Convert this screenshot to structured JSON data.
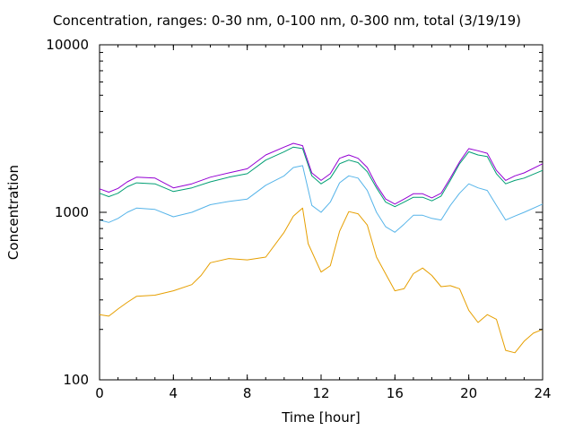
{
  "chart_data": {
    "type": "line",
    "title": "Concentration, ranges: 0-30 nm, 0-100 nm, 0-300 nm, total (3/19/19)",
    "xlabel": "Time [hour]",
    "ylabel": "Concentration",
    "xlim": [
      0,
      24
    ],
    "ylim": [
      100,
      10000
    ],
    "yscale": "log",
    "x_ticks": [
      "0",
      "4",
      "8",
      "12",
      "16",
      "20",
      "24"
    ],
    "y_ticks": [
      "100",
      "1000",
      "10000"
    ],
    "grid": false,
    "legend": "none",
    "series": [
      {
        "color": "#e69f00",
        "x": [
          0,
          0.5,
          1,
          1.5,
          2,
          3,
          4,
          5,
          5.5,
          6,
          7,
          8,
          9,
          10,
          10.5,
          11,
          11.3,
          12,
          12.5,
          13,
          13.5,
          14,
          14.5,
          15,
          16,
          16.5,
          17,
          17.5,
          18,
          18.5,
          19,
          19.5,
          20,
          20.5,
          21,
          21.5,
          22,
          22.5,
          23,
          23.5,
          24
        ],
        "y": [
          245,
          240,
          265,
          290,
          315,
          320,
          340,
          370,
          420,
          500,
          530,
          520,
          540,
          760,
          950,
          1060,
          650,
          440,
          480,
          770,
          1010,
          980,
          840,
          540,
          340,
          350,
          430,
          465,
          420,
          360,
          365,
          350,
          260,
          220,
          245,
          230,
          150,
          145,
          170,
          190,
          200
        ]
      },
      {
        "color": "#56b4e9",
        "x": [
          0,
          0.5,
          1,
          1.5,
          2,
          3,
          4,
          5,
          6,
          7,
          8,
          9,
          10,
          10.5,
          11,
          11.5,
          12,
          12.5,
          13,
          13.5,
          14,
          14.5,
          15,
          15.5,
          16,
          16.5,
          17,
          17.5,
          18,
          18.5,
          19,
          19.5,
          20,
          20.5,
          21,
          21.5,
          22,
          22.5,
          23,
          24
        ],
        "y": [
          900,
          870,
          920,
          1000,
          1060,
          1040,
          940,
          1000,
          1110,
          1160,
          1200,
          1450,
          1650,
          1850,
          1900,
          1100,
          1000,
          1150,
          1500,
          1650,
          1600,
          1350,
          1000,
          820,
          760,
          850,
          960,
          960,
          920,
          900,
          1100,
          1300,
          1480,
          1400,
          1350,
          1100,
          900,
          950,
          1000,
          1120
        ]
      },
      {
        "color": "#009e73",
        "x": [
          0,
          0.5,
          1,
          1.5,
          2,
          3,
          4,
          5,
          6,
          7,
          8,
          9,
          10,
          10.5,
          11,
          11.5,
          12,
          12.5,
          13,
          13.5,
          14,
          14.5,
          15,
          15.5,
          16,
          16.5,
          17,
          17.5,
          18,
          18.5,
          19,
          19.5,
          20,
          20.5,
          21,
          21.5,
          22,
          22.5,
          23,
          24
        ],
        "y": [
          1300,
          1240,
          1300,
          1420,
          1500,
          1480,
          1330,
          1400,
          1520,
          1620,
          1700,
          2050,
          2300,
          2450,
          2400,
          1650,
          1480,
          1600,
          1950,
          2050,
          1980,
          1750,
          1400,
          1150,
          1080,
          1150,
          1230,
          1230,
          1170,
          1250,
          1550,
          1950,
          2300,
          2200,
          2150,
          1700,
          1480,
          1550,
          1600,
          1780
        ]
      },
      {
        "color": "#9400d3",
        "x": [
          0,
          0.5,
          1,
          1.5,
          2,
          3,
          4,
          5,
          6,
          7,
          8,
          9,
          10,
          10.5,
          11,
          11.5,
          12,
          12.5,
          13,
          13.5,
          14,
          14.5,
          15,
          15.5,
          16,
          16.5,
          17,
          17.5,
          18,
          18.5,
          19,
          19.5,
          20,
          20.5,
          21,
          21.5,
          22,
          22.5,
          23,
          24
        ],
        "y": [
          1380,
          1320,
          1390,
          1520,
          1620,
          1600,
          1400,
          1480,
          1620,
          1720,
          1820,
          2200,
          2450,
          2580,
          2500,
          1720,
          1550,
          1700,
          2100,
          2200,
          2100,
          1850,
          1450,
          1200,
          1120,
          1200,
          1290,
          1290,
          1220,
          1300,
          1600,
          2000,
          2400,
          2330,
          2250,
          1780,
          1550,
          1650,
          1720,
          1950
        ]
      }
    ]
  }
}
